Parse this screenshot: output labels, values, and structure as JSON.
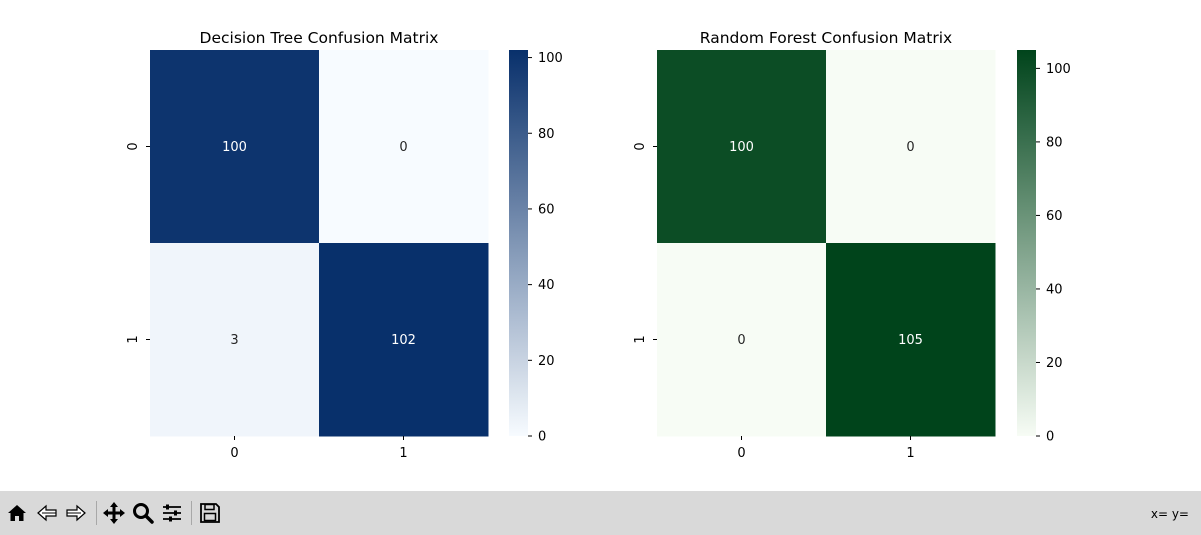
{
  "chart_data": [
    {
      "type": "heatmap",
      "title": "Decision Tree Confusion Matrix",
      "x_tick_labels": [
        "0",
        "1"
      ],
      "y_tick_labels": [
        "0",
        "1"
      ],
      "matrix": [
        [
          100,
          0
        ],
        [
          3,
          102
        ]
      ],
      "colormap": "Blues",
      "colorbar": {
        "ticks": [
          "0",
          "20",
          "40",
          "60",
          "80",
          "100"
        ],
        "range": [
          0,
          102
        ]
      }
    },
    {
      "type": "heatmap",
      "title": "Random Forest Confusion Matrix",
      "x_tick_labels": [
        "0",
        "1"
      ],
      "y_tick_labels": [
        "0",
        "1"
      ],
      "matrix": [
        [
          100,
          0
        ],
        [
          0,
          105
        ]
      ],
      "colormap": "Greens",
      "colorbar": {
        "ticks": [
          "0",
          "20",
          "40",
          "60",
          "80",
          "100"
        ],
        "range": [
          0,
          105
        ]
      }
    }
  ],
  "colors": {
    "blues_low": "#f7fbff",
    "blues_high": "#08306b",
    "greens_low": "#f7fcf5",
    "greens_high": "#00441b",
    "toolbar_bg": "#d9d9d9"
  },
  "toolbar": {
    "buttons": [
      "home-icon",
      "back-icon",
      "forward-icon",
      "pan-icon",
      "zoom-icon",
      "configure-icon",
      "save-icon"
    ],
    "coords": "x= y="
  }
}
